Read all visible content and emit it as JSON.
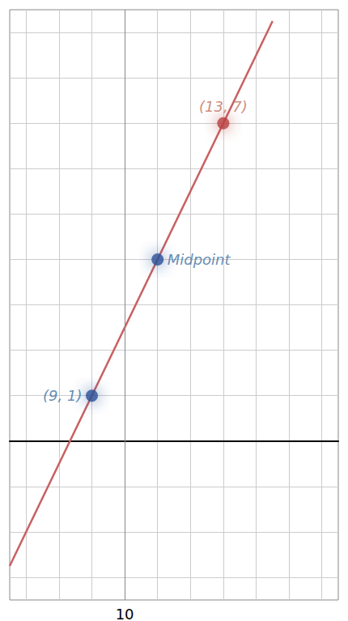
{
  "chart_data": {
    "type": "scatter",
    "series": [
      {
        "type": "line",
        "x": [
          6.5,
          14.5
        ],
        "values": [
          -2.75,
          9.25
        ],
        "color": "#c96060"
      },
      {
        "type": "scatter",
        "x": [
          9,
          11,
          13
        ],
        "values": [
          1,
          4,
          7
        ],
        "colors": [
          "#2a5298",
          "#2a5298",
          "#b94040"
        ]
      }
    ],
    "annotations": [
      {
        "text": "(9, 1)",
        "x": 9,
        "y": 1,
        "color": "#4070a0"
      },
      {
        "text": "Midpoint",
        "x": 11,
        "y": 4,
        "color": "#4070a0"
      },
      {
        "text": "(13, 7)",
        "x": 13,
        "y": 7,
        "color": "#c07060"
      }
    ],
    "xlim": [
      6.5,
      16.5
    ],
    "ylim": [
      -3.5,
      9.5
    ],
    "xticks": [
      10
    ],
    "yticks": [],
    "grid": true,
    "tick_labels": "x"
  }
}
